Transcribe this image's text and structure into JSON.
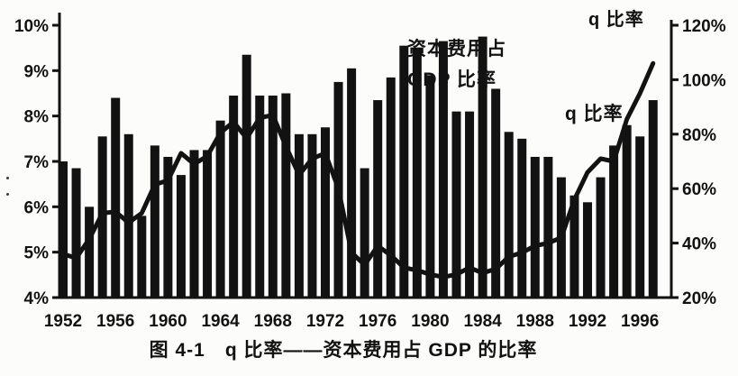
{
  "figure": {
    "right_axis_title": "q 比率",
    "bar_annotation_line1": "资本费用占",
    "bar_annotation_line2": "GDP 比率",
    "line_annotation": "q 比率",
    "caption": "图 4-1　q 比率——资本费用占 GDP 的比率"
  },
  "colors": {
    "ink": "#121212",
    "background": "#fcfcfa"
  },
  "chart_data": {
    "type": "combo",
    "title": "图 4-1 q 比率——资本费用占 GDP 的比率",
    "grid": false,
    "legend_position": "inline-annotations",
    "x": [
      1952,
      1953,
      1954,
      1955,
      1956,
      1957,
      1958,
      1959,
      1960,
      1961,
      1962,
      1963,
      1964,
      1965,
      1966,
      1967,
      1968,
      1969,
      1970,
      1971,
      1972,
      1973,
      1974,
      1975,
      1976,
      1977,
      1978,
      1979,
      1980,
      1981,
      1982,
      1983,
      1984,
      1985,
      1986,
      1987,
      1988,
      1989,
      1990,
      1991,
      1992,
      1993,
      1994,
      1995,
      1996,
      1997
    ],
    "series": [
      {
        "name": "资本费用占 GDP 比率",
        "type": "bar",
        "axis": "left",
        "unit": "%",
        "values": [
          7.0,
          6.85,
          6.0,
          7.55,
          8.4,
          7.6,
          5.8,
          7.35,
          7.1,
          6.7,
          7.25,
          7.25,
          7.9,
          8.45,
          9.35,
          8.45,
          8.45,
          8.5,
          7.6,
          7.6,
          7.75,
          8.75,
          9.05,
          6.85,
          8.35,
          8.85,
          9.55,
          9.5,
          8.9,
          9.65,
          8.1,
          8.1,
          9.75,
          8.6,
          7.65,
          7.5,
          7.1,
          7.1,
          6.65,
          6.25,
          6.1,
          6.65,
          7.35,
          7.8,
          7.55,
          8.35
        ]
      },
      {
        "name": "q 比率",
        "type": "line",
        "axis": "right",
        "unit": "%",
        "values": [
          36,
          34.5,
          41.5,
          51,
          51.5,
          47.5,
          51,
          61.5,
          63,
          73,
          69,
          72,
          80.5,
          84.5,
          78.5,
          86,
          87,
          75.5,
          65,
          71,
          73,
          60,
          36.5,
          32,
          39,
          35.5,
          31,
          30,
          28.5,
          27.5,
          28.5,
          31,
          29,
          30.5,
          35,
          36.5,
          39,
          40,
          42,
          56,
          66,
          71,
          70,
          85.5,
          95,
          106
        ]
      }
    ],
    "left_axis": {
      "min": 4,
      "max": 10,
      "tick_step": 1,
      "unit": "%",
      "tick_labels": [
        "4%",
        "5%",
        "6%",
        "7%",
        "8%",
        "9%",
        "10%"
      ]
    },
    "right_axis": {
      "min": 20,
      "max": 120,
      "tick_step": 20,
      "unit": "%",
      "tick_labels": [
        "20%",
        "40%",
        "60%",
        "80%",
        "100%",
        "120%"
      ]
    },
    "x_axis": {
      "tick_labels": [
        1952,
        1956,
        1960,
        1964,
        1968,
        1972,
        1976,
        1980,
        1984,
        1988,
        1992,
        1996
      ]
    }
  }
}
